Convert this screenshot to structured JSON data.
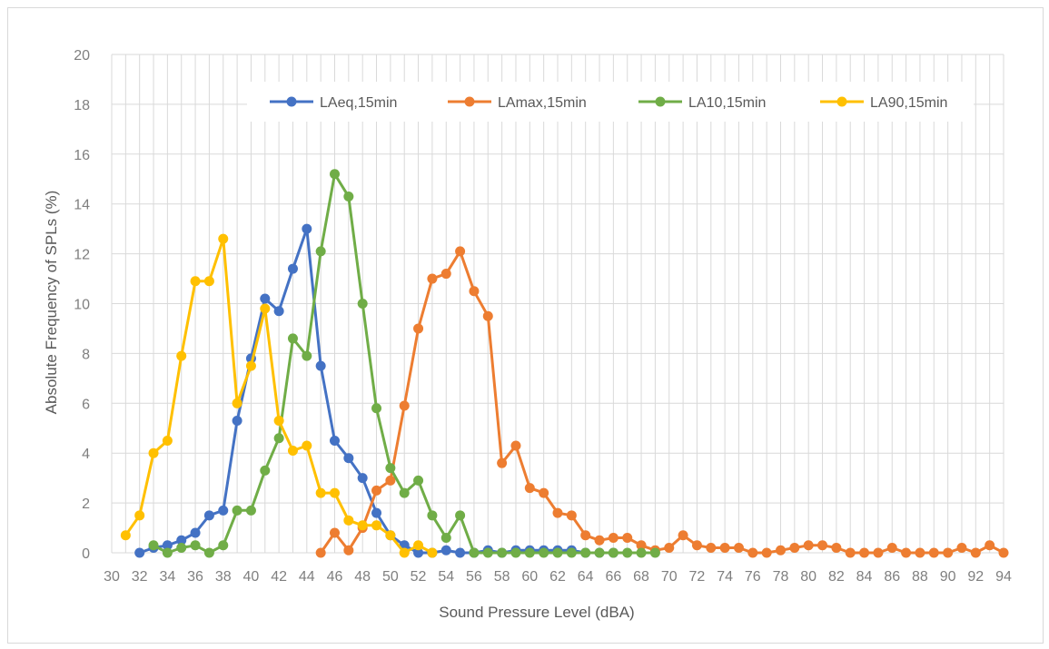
{
  "chart_data": {
    "type": "line",
    "xlabel": "Sound Pressure Level (dBA)",
    "ylabel": "Absolute Frequency of SPLs (%)",
    "xlim": [
      30,
      94
    ],
    "ylim": [
      0,
      20
    ],
    "x_ticks": [
      30,
      32,
      34,
      36,
      38,
      40,
      42,
      44,
      46,
      48,
      50,
      52,
      54,
      56,
      58,
      60,
      62,
      64,
      66,
      68,
      70,
      72,
      74,
      76,
      78,
      80,
      82,
      84,
      86,
      88,
      90,
      92,
      94
    ],
    "y_ticks": [
      0,
      2,
      4,
      6,
      8,
      10,
      12,
      14,
      16,
      18,
      20
    ],
    "grid": true,
    "legend_position": "top",
    "series": [
      {
        "name": "LAeq,15min",
        "color": "#4472c4",
        "points": [
          [
            32,
            0
          ],
          [
            33,
            0.2
          ],
          [
            34,
            0.3
          ],
          [
            35,
            0.5
          ],
          [
            36,
            0.8
          ],
          [
            37,
            1.5
          ],
          [
            38,
            1.7
          ],
          [
            39,
            5.3
          ],
          [
            40,
            7.8
          ],
          [
            41,
            10.2
          ],
          [
            42,
            9.7
          ],
          [
            43,
            11.4
          ],
          [
            44,
            13.0
          ],
          [
            45,
            7.5
          ],
          [
            46,
            4.5
          ],
          [
            47,
            3.8
          ],
          [
            48,
            3.0
          ],
          [
            49,
            1.6
          ],
          [
            50,
            0.7
          ],
          [
            51,
            0.3
          ],
          [
            52,
            0
          ],
          [
            53,
            0
          ],
          [
            54,
            0.1
          ],
          [
            55,
            0
          ],
          [
            56,
            0
          ],
          [
            57,
            0.1
          ],
          [
            58,
            0
          ],
          [
            59,
            0.1
          ],
          [
            60,
            0.1
          ],
          [
            61,
            0.1
          ],
          [
            62,
            0.1
          ],
          [
            63,
            0.1
          ],
          [
            64,
            0
          ],
          [
            65,
            0
          ],
          [
            66,
            0
          ]
        ]
      },
      {
        "name": "LAmax,15min",
        "color": "#ed7d31",
        "points": [
          [
            45,
            0
          ],
          [
            46,
            0.8
          ],
          [
            47,
            0.1
          ],
          [
            48,
            1.0
          ],
          [
            49,
            2.5
          ],
          [
            50,
            2.9
          ],
          [
            51,
            5.9
          ],
          [
            52,
            9.0
          ],
          [
            53,
            11.0
          ],
          [
            54,
            11.2
          ],
          [
            55,
            12.1
          ],
          [
            56,
            10.5
          ],
          [
            57,
            9.5
          ],
          [
            58,
            3.6
          ],
          [
            59,
            4.3
          ],
          [
            60,
            2.6
          ],
          [
            61,
            2.4
          ],
          [
            62,
            1.6
          ],
          [
            63,
            1.5
          ],
          [
            64,
            0.7
          ],
          [
            65,
            0.5
          ],
          [
            66,
            0.6
          ],
          [
            67,
            0.6
          ],
          [
            68,
            0.3
          ],
          [
            69,
            0.1
          ],
          [
            70,
            0.2
          ],
          [
            71,
            0.7
          ],
          [
            72,
            0.3
          ],
          [
            73,
            0.2
          ],
          [
            74,
            0.2
          ],
          [
            75,
            0.2
          ],
          [
            76,
            0
          ],
          [
            77,
            0
          ],
          [
            78,
            0.1
          ],
          [
            79,
            0.2
          ],
          [
            80,
            0.3
          ],
          [
            81,
            0.3
          ],
          [
            82,
            0.2
          ],
          [
            83,
            0
          ],
          [
            84,
            0
          ],
          [
            85,
            0
          ],
          [
            86,
            0.2
          ],
          [
            87,
            0
          ],
          [
            88,
            0
          ],
          [
            89,
            0
          ],
          [
            90,
            0
          ],
          [
            91,
            0.2
          ],
          [
            92,
            0
          ],
          [
            93,
            0.3
          ],
          [
            94,
            0
          ]
        ]
      },
      {
        "name": "LA10,15min",
        "color": "#70ad47",
        "points": [
          [
            33,
            0.3
          ],
          [
            34,
            0
          ],
          [
            35,
            0.2
          ],
          [
            36,
            0.3
          ],
          [
            37,
            0
          ],
          [
            38,
            0.3
          ],
          [
            39,
            1.7
          ],
          [
            40,
            1.7
          ],
          [
            41,
            3.3
          ],
          [
            42,
            4.6
          ],
          [
            43,
            8.6
          ],
          [
            44,
            7.9
          ],
          [
            45,
            12.1
          ],
          [
            46,
            15.2
          ],
          [
            47,
            14.3
          ],
          [
            48,
            10.0
          ],
          [
            49,
            5.8
          ],
          [
            50,
            3.4
          ],
          [
            51,
            2.4
          ],
          [
            52,
            2.9
          ],
          [
            53,
            1.5
          ],
          [
            54,
            0.6
          ],
          [
            55,
            1.5
          ],
          [
            56,
            0
          ],
          [
            57,
            0
          ],
          [
            58,
            0
          ],
          [
            59,
            0
          ],
          [
            60,
            0
          ],
          [
            61,
            0
          ],
          [
            62,
            0
          ],
          [
            63,
            0
          ],
          [
            64,
            0
          ],
          [
            65,
            0
          ],
          [
            66,
            0
          ],
          [
            67,
            0
          ],
          [
            68,
            0
          ],
          [
            69,
            0
          ]
        ]
      },
      {
        "name": "LA90,15min",
        "color": "#ffc000",
        "points": [
          [
            31,
            0.7
          ],
          [
            32,
            1.5
          ],
          [
            33,
            4.0
          ],
          [
            34,
            4.5
          ],
          [
            35,
            7.9
          ],
          [
            36,
            10.9
          ],
          [
            37,
            10.9
          ],
          [
            38,
            12.6
          ],
          [
            39,
            6.0
          ],
          [
            40,
            7.5
          ],
          [
            41,
            9.8
          ],
          [
            42,
            5.3
          ],
          [
            43,
            4.1
          ],
          [
            44,
            4.3
          ],
          [
            45,
            2.4
          ],
          [
            46,
            2.4
          ],
          [
            47,
            1.3
          ],
          [
            48,
            1.1
          ],
          [
            49,
            1.1
          ],
          [
            50,
            0.7
          ],
          [
            51,
            0
          ],
          [
            52,
            0.3
          ],
          [
            53,
            0
          ]
        ]
      }
    ]
  }
}
